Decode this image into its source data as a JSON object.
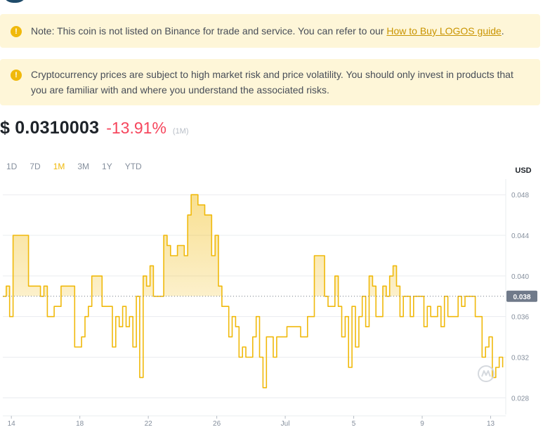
{
  "notices": {
    "first": {
      "text": "Note: This coin is not listed on Binance for trade and service. You can refer to our ",
      "link": "How to Buy LOGOS guide",
      "suffix": "."
    },
    "second": {
      "text": "Cryptocurrency prices are subject to high market risk and price volatility. You should only invest in products that you are familiar with and where you understand the associated risks."
    },
    "icon": "warning-icon"
  },
  "price": {
    "value": "$ 0.0310003",
    "change": "-13.91%",
    "period": "(1M)"
  },
  "tabs": [
    "1D",
    "7D",
    "1M",
    "3M",
    "1Y",
    "YTD"
  ],
  "active_tab": "1M",
  "chart_data": {
    "type": "area",
    "ylabel": "USD",
    "ylim": [
      0.0265,
      0.0485
    ],
    "y_ticks": [
      0.048,
      0.044,
      0.04,
      0.036,
      0.032,
      0.028
    ],
    "y_tick_labels": [
      "0.048",
      "0.044",
      "0.040",
      "0.036",
      "0.032",
      "0.028"
    ],
    "current_value": 0.038,
    "current_label": "0.038",
    "x_ticks": [
      {
        "label": "14",
        "x": 0.5
      },
      {
        "label": "18",
        "x": 4.5
      },
      {
        "label": "22",
        "x": 8.5
      },
      {
        "label": "26",
        "x": 12.5
      },
      {
        "label": "Jul",
        "x": 16.5
      },
      {
        "label": "5",
        "x": 20.5
      },
      {
        "label": "9",
        "x": 24.5
      },
      {
        "label": "13",
        "x": 28.5
      }
    ],
    "xlim": [
      0,
      29.3
    ],
    "series": [
      {
        "color": "#f0b90b",
        "x": [
          0.0,
          0.2,
          0.4,
          0.6,
          0.8,
          1.0,
          1.5,
          2.0,
          2.2,
          2.4,
          2.6,
          2.8,
          3.0,
          3.4,
          3.6,
          3.8,
          4.2,
          4.6,
          4.8,
          5.0,
          5.2,
          5.4,
          5.6,
          5.8,
          6.2,
          6.4,
          6.6,
          6.8,
          7.0,
          7.2,
          7.4,
          7.6,
          7.8,
          8.0,
          8.2,
          8.4,
          8.6,
          8.8,
          9.0,
          9.4,
          9.6,
          9.8,
          10.2,
          10.6,
          10.8,
          11.0,
          11.4,
          11.8,
          12.2,
          12.4,
          12.6,
          12.8,
          13.2,
          13.4,
          13.6,
          13.8,
          14.0,
          14.2,
          14.6,
          14.8,
          15.0,
          15.2,
          15.4,
          15.6,
          15.8,
          16.0,
          16.2,
          16.6,
          17.0,
          17.4,
          17.8,
          18.2,
          18.6,
          18.8,
          19.0,
          19.4,
          19.6,
          19.8,
          20.0,
          20.2,
          20.4,
          20.6,
          20.8,
          21.0,
          21.2,
          21.4,
          21.6,
          21.8,
          22.0,
          22.2,
          22.4,
          22.6,
          22.8,
          23.0,
          23.2,
          23.4,
          23.6,
          23.8,
          24.0,
          24.4,
          24.6,
          24.8,
          25.0,
          25.4,
          25.6,
          25.8,
          26.0,
          26.4,
          26.6,
          26.8,
          27.0,
          27.2,
          27.6,
          28.0,
          28.2,
          28.4,
          28.6,
          28.8,
          29.0,
          29.2
        ],
        "values": [
          0.038,
          0.039,
          0.036,
          0.044,
          0.044,
          0.044,
          0.039,
          0.039,
          0.038,
          0.039,
          0.036,
          0.036,
          0.037,
          0.039,
          0.039,
          0.039,
          0.033,
          0.034,
          0.036,
          0.037,
          0.04,
          0.04,
          0.04,
          0.037,
          0.037,
          0.033,
          0.036,
          0.035,
          0.037,
          0.035,
          0.036,
          0.033,
          0.038,
          0.03,
          0.04,
          0.039,
          0.041,
          0.038,
          0.038,
          0.044,
          0.043,
          0.042,
          0.043,
          0.042,
          0.046,
          0.048,
          0.047,
          0.046,
          0.042,
          0.044,
          0.039,
          0.037,
          0.034,
          0.036,
          0.035,
          0.032,
          0.033,
          0.032,
          0.034,
          0.036,
          0.032,
          0.029,
          0.034,
          0.034,
          0.032,
          0.034,
          0.034,
          0.035,
          0.035,
          0.034,
          0.036,
          0.042,
          0.042,
          0.038,
          0.037,
          0.04,
          0.037,
          0.034,
          0.036,
          0.031,
          0.037,
          0.033,
          0.036,
          0.038,
          0.035,
          0.04,
          0.039,
          0.036,
          0.036,
          0.039,
          0.038,
          0.04,
          0.041,
          0.039,
          0.036,
          0.038,
          0.038,
          0.036,
          0.038,
          0.038,
          0.035,
          0.037,
          0.036,
          0.037,
          0.035,
          0.038,
          0.036,
          0.036,
          0.038,
          0.037,
          0.038,
          0.038,
          0.036,
          0.032,
          0.033,
          0.034,
          0.03,
          0.031,
          0.032,
          0.031
        ]
      }
    ]
  }
}
